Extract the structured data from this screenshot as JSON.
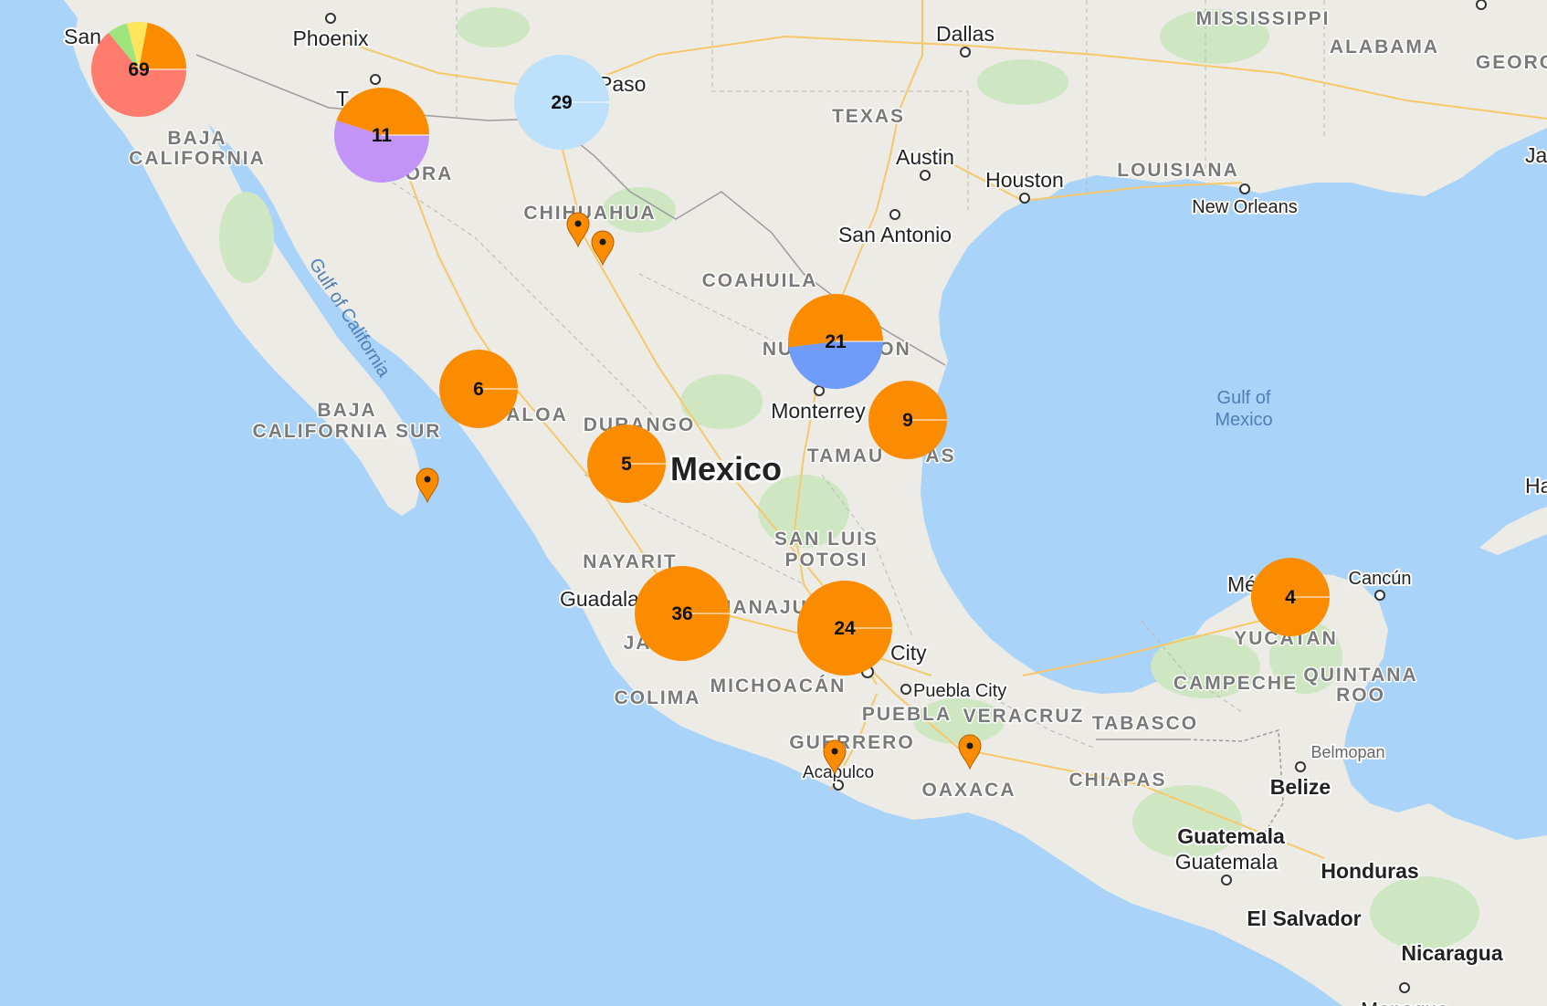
{
  "map": {
    "country_label": "Mexico",
    "water_labels": {
      "gulf_of_california": "Gulf of California",
      "gulf_of_mexico_1": "Gulf of",
      "gulf_of_mexico_2": "Mexico"
    },
    "state_labels": {
      "mississippi": "MISSISSIPPI",
      "alabama": "ALABAMA",
      "georgia_partial": "GEORG",
      "texas": "TEXAS",
      "louisiana": "LOUISIANA",
      "baja_california_1": "BAJA",
      "baja_california_2": "CALIFORNIA",
      "sonora_partial": "ORA",
      "chihuahua": "CHIHUAHUA",
      "coahuila": "COAHUILA",
      "nuevo_leon_left": "NU",
      "nuevo_leon_right": "ON",
      "baja_california_sur_1": "BAJA",
      "baja_california_sur_2": "CALIFORNIA SUR",
      "sinaloa_partial": "ALOA",
      "durango": "DURANGO",
      "tamaulipas_left": "TAMAU",
      "tamaulipas_right": "AS",
      "san_luis_potosi_1": "SAN LUIS",
      "san_luis_potosi_2": "POTOSI",
      "nayarit": "NAYARIT",
      "jalisco_partial": "JA",
      "guanajuato_partial": "UANAJU",
      "michoacan": "MICHOACÁN",
      "colima": "COLIMA",
      "puebla": "PUEBLA",
      "veracruz": "VERACRUZ",
      "tabasco": "TABASCO",
      "guerrero": "GUERRERO",
      "oaxaca": "OAXACA",
      "chiapas": "CHIAPAS",
      "campeche": "CAMPECHE",
      "quintana_roo_1": "QUINTANA",
      "quintana_roo_2": "ROO",
      "yucatan": "YUCATAN"
    },
    "city_labels": {
      "san_diego_partial": "San",
      "phoenix": "Phoenix",
      "tucson_partial": "T",
      "el_paso_partial": "Paso",
      "dallas": "Dallas",
      "austin": "Austin",
      "houston": "Houston",
      "san_antonio": "San Antonio",
      "new_orleans": "New Orleans",
      "monterrey": "Monterrey",
      "guadalajara_partial": "Guadala",
      "mexico_city_partial": "City",
      "puebla_city": "Puebla City",
      "acapulco": "Acapulco",
      "merida_partial": "Mé",
      "cancun": "Cancún",
      "belmopan": "Belmopan",
      "belize": "Belize",
      "guatemala_country": "Guatemala",
      "guatemala_city": "Guatemala",
      "honduras": "Honduras",
      "el_salvador": "El Salvador",
      "nicaragua": "Nicaragua",
      "managua_partial": "Managua",
      "havana_partial": "Ha",
      "jacksonville_partial": "Ja"
    },
    "clusters": [
      {
        "id": "baja-north",
        "count": "69",
        "slices": [
          {
            "color": "#ff7b6e",
            "fraction": 0.64
          },
          {
            "color": "#9fe57d",
            "fraction": 0.07
          },
          {
            "color": "#ffe55c",
            "fraction": 0.07
          },
          {
            "color": "#fb8c00",
            "fraction": 0.22
          }
        ]
      },
      {
        "id": "sonora",
        "count": "11",
        "slices": [
          {
            "color": "#c394f8",
            "fraction": 0.55
          },
          {
            "color": "#fb8c00",
            "fraction": 0.45
          }
        ]
      },
      {
        "id": "el-paso",
        "count": "29",
        "slices": [
          {
            "color": "#bde0fb",
            "fraction": 1.0
          }
        ]
      },
      {
        "id": "nuevo-leon",
        "count": "21",
        "slices": [
          {
            "color": "#6f9cf8",
            "fraction": 0.48
          },
          {
            "color": "#fb8c00",
            "fraction": 0.52
          }
        ]
      },
      {
        "id": "sinaloa",
        "count": "6",
        "slices": [
          {
            "color": "#fb8c00",
            "fraction": 1.0
          }
        ]
      },
      {
        "id": "durango",
        "count": "5",
        "slices": [
          {
            "color": "#fb8c00",
            "fraction": 1.0
          }
        ]
      },
      {
        "id": "tamaulipas",
        "count": "9",
        "slices": [
          {
            "color": "#fb8c00",
            "fraction": 1.0
          }
        ]
      },
      {
        "id": "jalisco",
        "count": "36",
        "slices": [
          {
            "color": "#fb8c00",
            "fraction": 1.0
          }
        ]
      },
      {
        "id": "mexico-city",
        "count": "24",
        "slices": [
          {
            "color": "#fb8c00",
            "fraction": 1.0
          }
        ]
      },
      {
        "id": "yucatan",
        "count": "4",
        "slices": [
          {
            "color": "#fb8c00",
            "fraction": 1.0
          }
        ]
      }
    ],
    "markers": [
      {
        "id": "chihuahua-1",
        "color": "#fb8c00"
      },
      {
        "id": "chihuahua-2",
        "color": "#fb8c00"
      },
      {
        "id": "baja-sur",
        "color": "#fb8c00"
      },
      {
        "id": "acapulco",
        "color": "#fb8c00"
      },
      {
        "id": "oaxaca",
        "color": "#fb8c00"
      }
    ],
    "colors": {
      "water": "#a9d3f8",
      "land": "#ecebe5",
      "highway": "#f7c86a",
      "accent": "#fb8c00"
    }
  }
}
